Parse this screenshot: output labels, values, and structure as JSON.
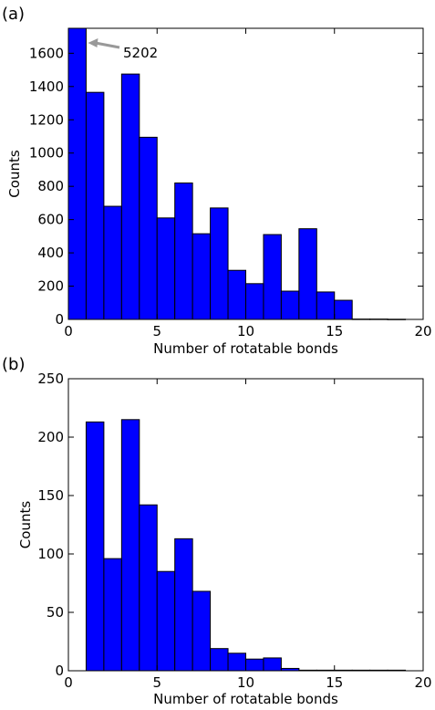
{
  "chart_data": [
    {
      "type": "bar",
      "panel_label": "(a)",
      "xlabel": "Number of rotatable bonds",
      "ylabel": "Counts",
      "xlim": [
        0,
        20
      ],
      "ylim": [
        0,
        1750
      ],
      "xticks": [
        0,
        5,
        10,
        15,
        20
      ],
      "yticks": [
        0,
        200,
        400,
        600,
        800,
        1000,
        1200,
        1400,
        1600
      ],
      "bin_edges": [
        0,
        1,
        2,
        3,
        4,
        5,
        6,
        7,
        8,
        9,
        10,
        11,
        12,
        13,
        14,
        15,
        16,
        17,
        18,
        19
      ],
      "values": [
        5202,
        1365,
        680,
        1475,
        1095,
        610,
        820,
        515,
        670,
        295,
        215,
        510,
        170,
        545,
        165,
        115,
        2,
        2,
        1
      ],
      "bar_color": "#0000ff",
      "annotation": {
        "text": "5202",
        "arrow_color": "#999999",
        "points_to_bin": 0
      }
    },
    {
      "type": "bar",
      "panel_label": "(b)",
      "xlabel": "Number of rotatable bonds",
      "ylabel": "Counts",
      "xlim": [
        0,
        20
      ],
      "ylim": [
        0,
        250
      ],
      "xticks": [
        0,
        5,
        10,
        15,
        20
      ],
      "yticks": [
        0,
        50,
        100,
        150,
        200,
        250
      ],
      "bin_edges": [
        1,
        2,
        3,
        4,
        5,
        6,
        7,
        8,
        9,
        10,
        11,
        12,
        13,
        14,
        15,
        16,
        17,
        18,
        19
      ],
      "values": [
        213,
        96,
        215,
        142,
        85,
        113,
        68,
        19,
        15,
        10,
        11,
        2,
        0.5,
        0.5,
        0.5,
        0.5,
        0.5,
        0.5
      ],
      "bar_color": "#0000ff"
    }
  ]
}
